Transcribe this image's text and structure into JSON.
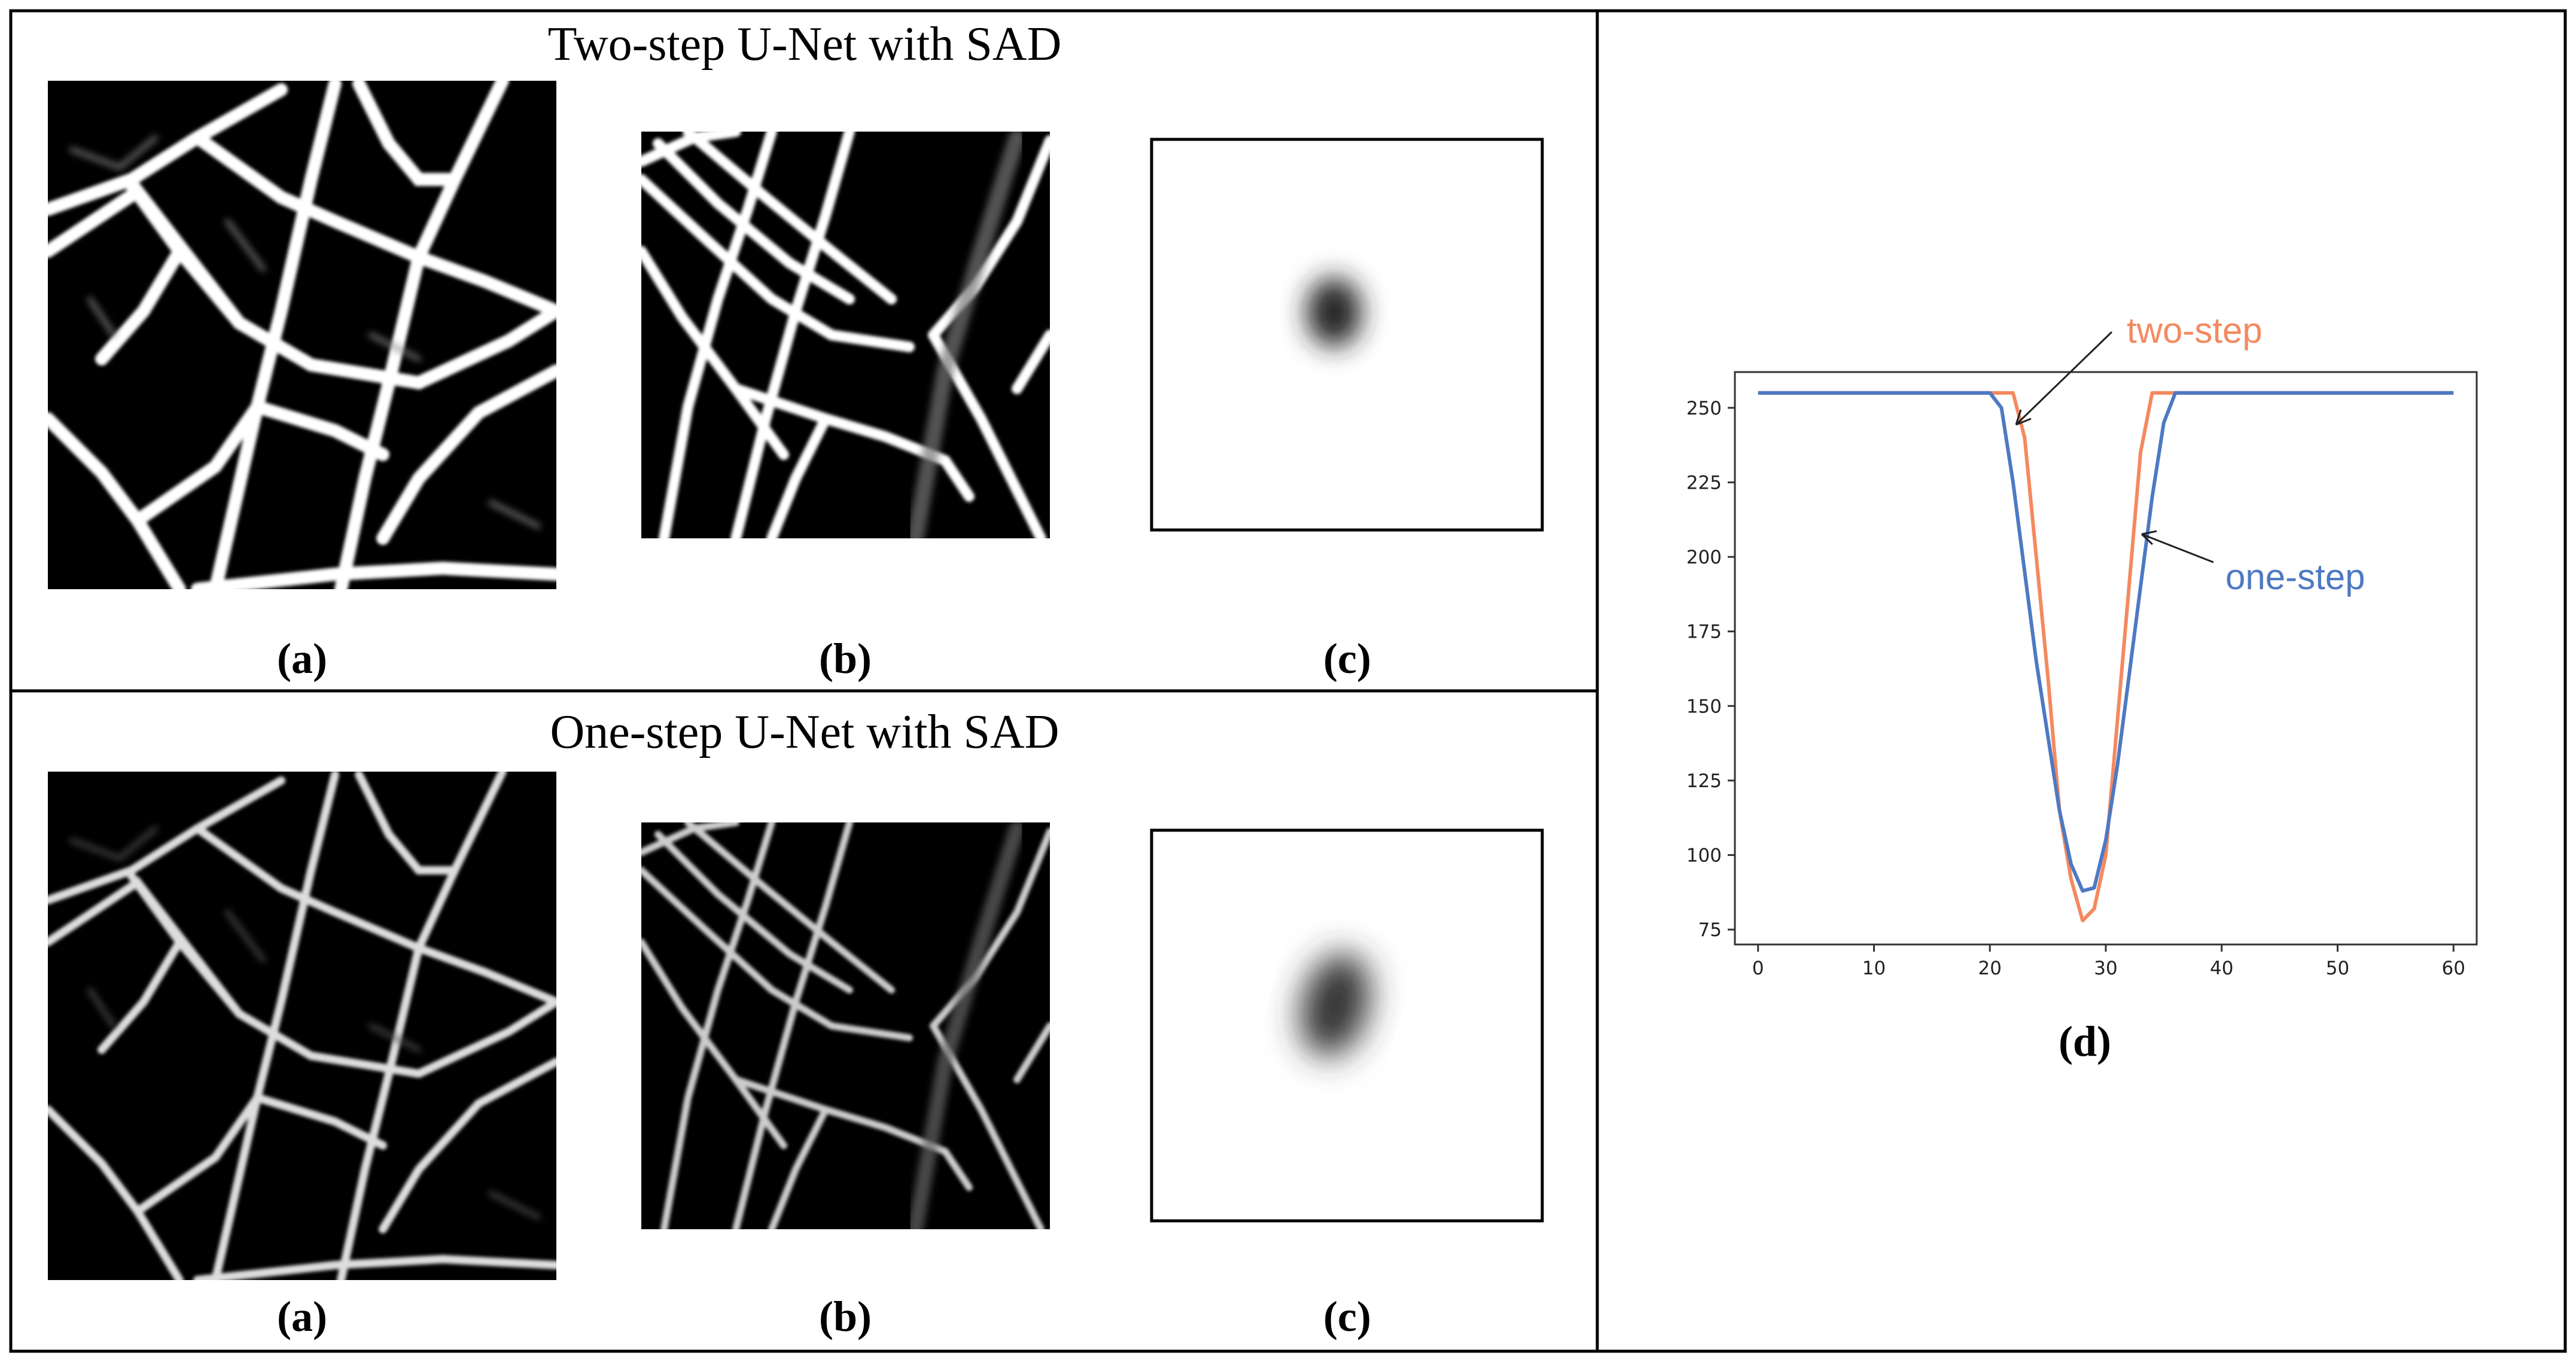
{
  "panels": {
    "top": {
      "title": "Two-step U-Net with SAD",
      "labels": [
        "(a)",
        "(b)",
        "(c)"
      ]
    },
    "bottom": {
      "title": "One-step U-Net with SAD",
      "labels": [
        "(a)",
        "(b)",
        "(c)"
      ]
    },
    "right": {
      "label": "(d)"
    }
  },
  "colors": {
    "two_step": "#f4895f",
    "one_step": "#4e79c2"
  },
  "chart_data": {
    "type": "line",
    "title": "",
    "xlabel": "",
    "ylabel": "",
    "xlim": [
      -2,
      62
    ],
    "ylim": [
      70,
      262
    ],
    "xticks": [
      "0",
      "10",
      "20",
      "30",
      "40",
      "50",
      "60"
    ],
    "yticks": [
      "75",
      "100",
      "125",
      "150",
      "175",
      "200",
      "225",
      "250"
    ],
    "grid": false,
    "series": [
      {
        "key": "two_step",
        "annotation": "two-step",
        "x": [
          0,
          20,
          22,
          23,
          24,
          25,
          26,
          27,
          28,
          29,
          30,
          31,
          32,
          33,
          34,
          60
        ],
        "y": [
          255,
          255,
          255,
          240,
          200,
          160,
          115,
          92,
          78,
          82,
          100,
          145,
          190,
          235,
          255,
          255
        ]
      },
      {
        "key": "one_step",
        "annotation": "one-step",
        "x": [
          0,
          20,
          21,
          22,
          23,
          24,
          25,
          26,
          27,
          28,
          29,
          30,
          31,
          32,
          33,
          34,
          35,
          36,
          60
        ],
        "y": [
          255,
          255,
          250,
          225,
          195,
          165,
          140,
          115,
          97,
          88,
          89,
          105,
          130,
          160,
          190,
          220,
          245,
          255,
          255
        ]
      }
    ]
  }
}
